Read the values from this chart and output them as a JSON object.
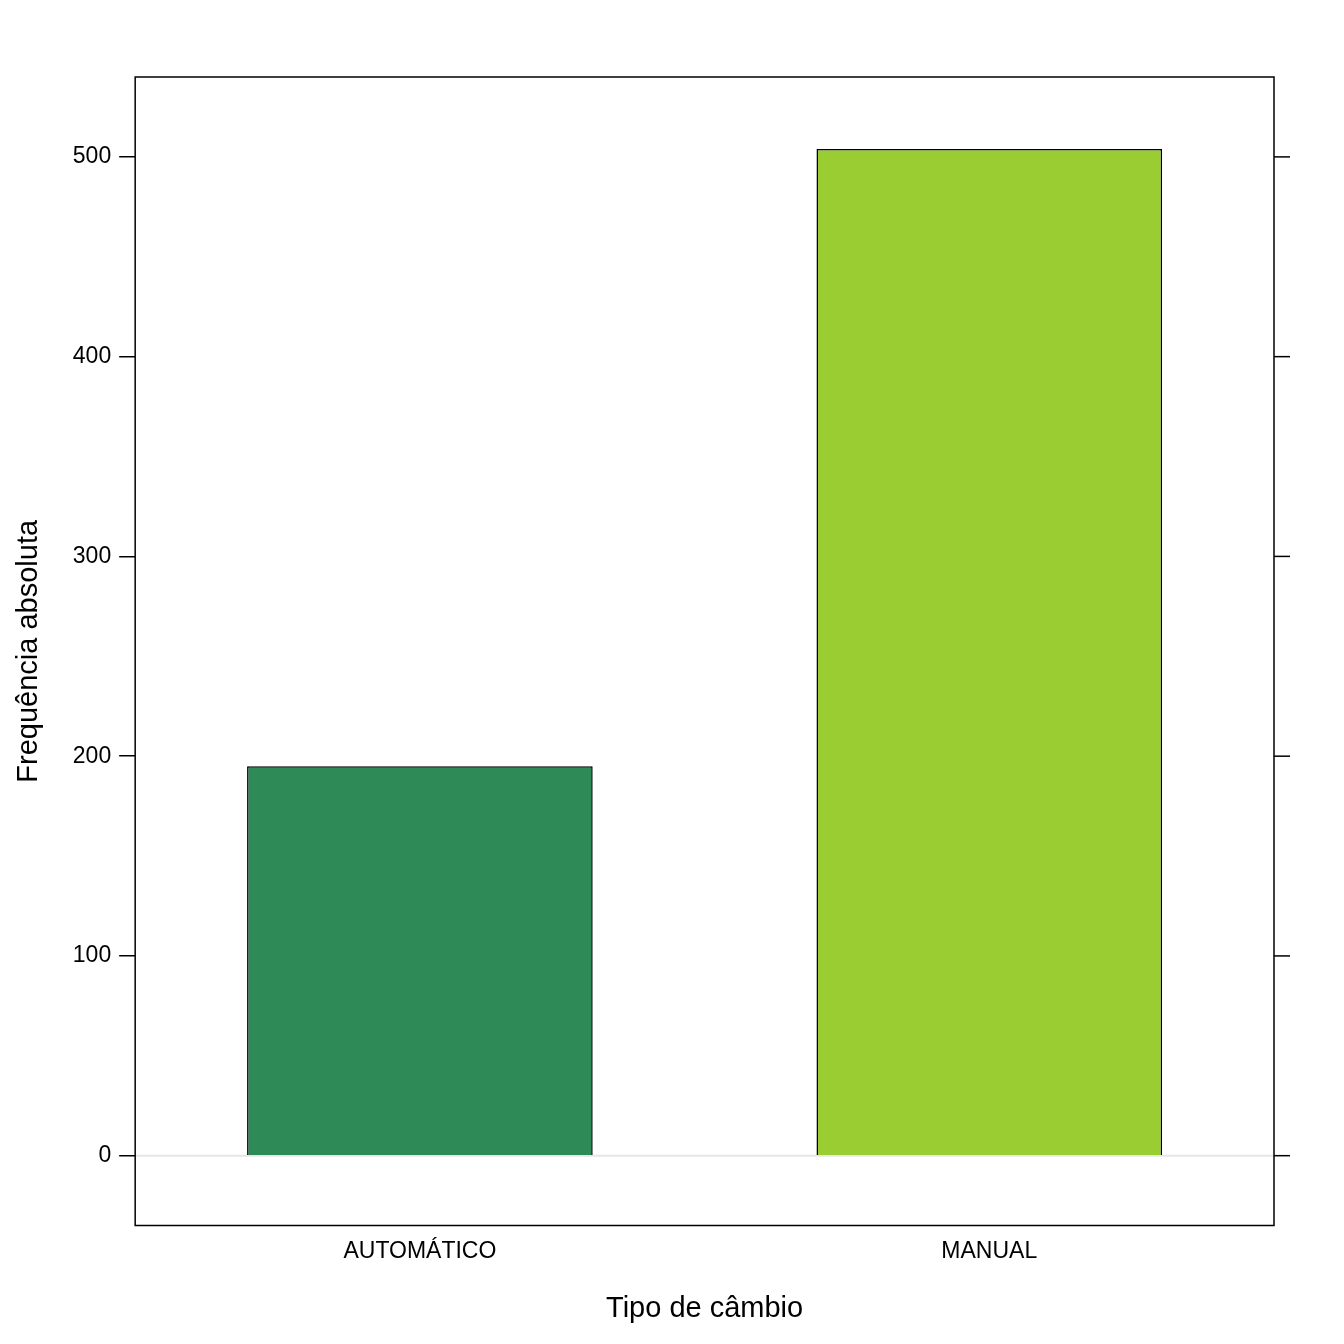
{
  "chart_data": {
    "type": "bar",
    "xlabel": "Tipo de câmbio",
    "ylabel": "Frequência absoluta",
    "categories": [
      "AUTOMÁTICO",
      "MANUAL"
    ],
    "values": [
      195,
      504
    ],
    "colors": [
      "#2e8b57",
      "#9acd32"
    ],
    "ylim": [
      -35,
      540
    ],
    "yticks": [
      0,
      100,
      200,
      300,
      400,
      500
    ],
    "ref_lines": [
      {
        "axis": "y",
        "value": 0,
        "color": "#e6e6e6"
      }
    ],
    "grid": false,
    "legend": false
  }
}
